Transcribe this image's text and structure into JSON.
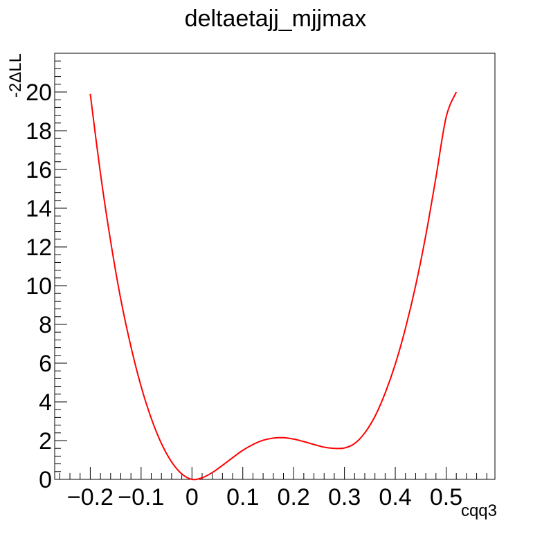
{
  "chart_data": {
    "type": "line",
    "title": "deltaetajj_mjjmax",
    "xlabel": "cqq3",
    "ylabel": "-2ΔLL",
    "xlim": [
      -0.27,
      0.596
    ],
    "ylim": [
      0,
      22
    ],
    "x_ticks": [
      -0.2,
      -0.1,
      0,
      0.1,
      0.2,
      0.3,
      0.4,
      0.5
    ],
    "x_tick_labels": [
      "−0.2",
      "−0.1",
      "0",
      "0.1",
      "0.2",
      "0.3",
      "0.4",
      "0.5"
    ],
    "y_ticks": [
      0,
      2,
      4,
      6,
      8,
      10,
      12,
      14,
      16,
      18,
      20
    ],
    "y_tick_labels": [
      "0",
      "2",
      "4",
      "6",
      "8",
      "10",
      "12",
      "14",
      "16",
      "18",
      "20"
    ],
    "grid": false,
    "series": [
      {
        "color": "#ff0000",
        "x": [
          -0.2,
          -0.18,
          -0.16,
          -0.14,
          -0.12,
          -0.1,
          -0.08,
          -0.06,
          -0.04,
          -0.02,
          0.0,
          0.02,
          0.04,
          0.06,
          0.08,
          0.1,
          0.12,
          0.14,
          0.16,
          0.18,
          0.2,
          0.22,
          0.24,
          0.26,
          0.28,
          0.3,
          0.32,
          0.34,
          0.36,
          0.38,
          0.4,
          0.42,
          0.44,
          0.46,
          0.48,
          0.5,
          0.52
        ],
        "y": [
          19.9,
          15.8,
          12.3,
          9.3,
          6.85,
          4.8,
          3.15,
          1.85,
          0.9,
          0.28,
          0.0,
          0.08,
          0.35,
          0.72,
          1.12,
          1.5,
          1.8,
          2.02,
          2.13,
          2.15,
          2.08,
          1.95,
          1.8,
          1.66,
          1.6,
          1.62,
          1.85,
          2.4,
          3.25,
          4.45,
          5.95,
          7.8,
          10.0,
          12.6,
          15.6,
          18.7,
          20.0
        ]
      }
    ]
  }
}
